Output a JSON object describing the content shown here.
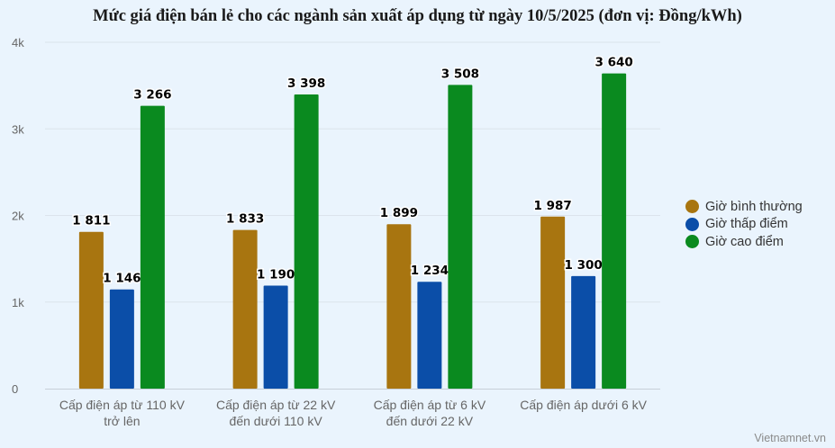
{
  "chart_data": {
    "type": "bar",
    "title": "Mức giá điện bán lẻ cho các ngành sản xuất áp dụng từ ngày 10/5/2025 (đơn vị: Đồng/kWh)",
    "categories": [
      [
        "Cấp điện áp từ 110 kV",
        "trở lên"
      ],
      [
        "Cấp điện áp từ 22 kV",
        "đến dưới 110 kV"
      ],
      [
        "Cấp điện áp từ 6 kV",
        "đến dưới 22 kV"
      ],
      [
        "Cấp điện áp dưới 6 kV"
      ]
    ],
    "series": [
      {
        "name": "Giờ bình thường",
        "color": "#a87510",
        "values": [
          1811,
          1833,
          1899,
          1987
        ],
        "labels": [
          "1 811",
          "1 833",
          "1 899",
          "1 987"
        ]
      },
      {
        "name": "Giờ thấp điểm",
        "color": "#0b4ea8",
        "values": [
          1146,
          1190,
          1234,
          1300
        ],
        "labels": [
          "1 146",
          "1 190",
          "1 234",
          "1 300"
        ]
      },
      {
        "name": "Giờ cao điểm",
        "color": "#0a8a1f",
        "values": [
          3266,
          3398,
          3508,
          3640
        ],
        "labels": [
          "3 266",
          "3 398",
          "3 508",
          "3 640"
        ]
      }
    ],
    "yticks": [
      {
        "value": 0,
        "label": "0"
      },
      {
        "value": 1000,
        "label": "1k"
      },
      {
        "value": 2000,
        "label": "2k"
      },
      {
        "value": 3000,
        "label": "3k"
      },
      {
        "value": 4000,
        "label": "4k"
      }
    ],
    "ylim": [
      0,
      4000
    ],
    "grid": true,
    "legend_position": "right"
  },
  "credit": "Vietnamnet.vn"
}
